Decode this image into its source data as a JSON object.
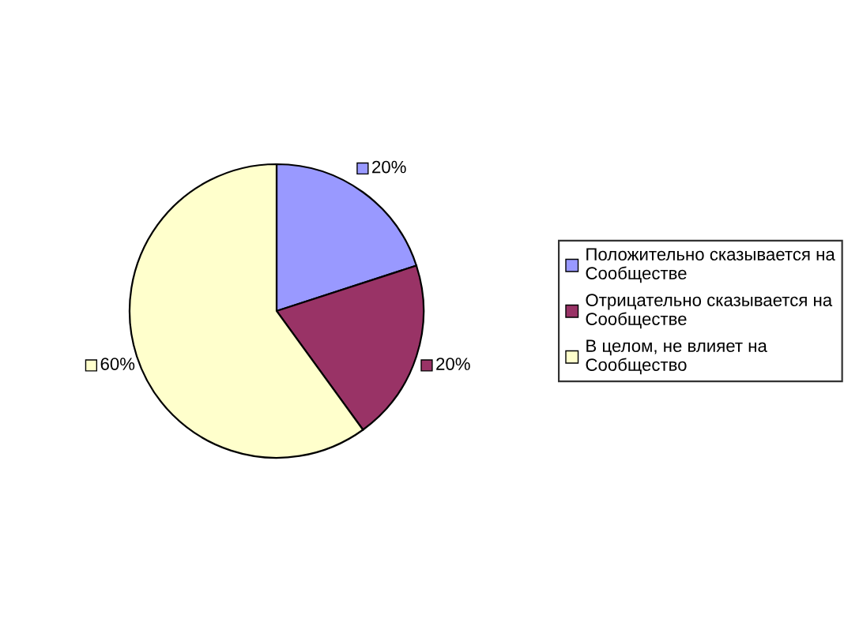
{
  "chart_data": {
    "type": "pie",
    "categories": [
      "Положительно сказывается на Сообществе",
      "Отрицательно сказывается на Сообществе",
      "В целом, не влияет на Сообщество"
    ],
    "values": [
      20,
      20,
      60
    ],
    "colors": [
      "#9999ff",
      "#993366",
      "#ffffcc"
    ],
    "value_labels": [
      "20%",
      "20%",
      "60%"
    ],
    "legend": "right"
  }
}
